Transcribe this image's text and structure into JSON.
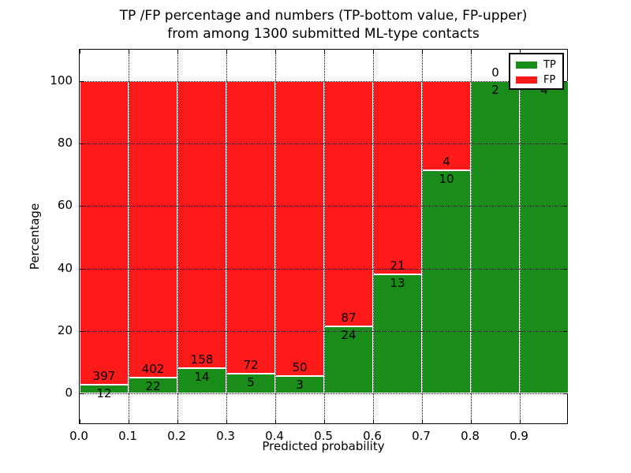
{
  "chart_data": {
    "type": "bar",
    "stacked": true,
    "title_line1": "TP /FP percentage and numbers (TP-bottom value, FP-upper)",
    "title_line2": "from among 1300 submitted ML-type contacts",
    "xlabel": "Predicted probability",
    "ylabel": "Percentage",
    "total_contacts": 1300,
    "categories": [
      "0.0-0.1",
      "0.1-0.2",
      "0.2-0.3",
      "0.3-0.4",
      "0.4-0.5",
      "0.5-0.6",
      "0.6-0.7",
      "0.7-0.8",
      "0.8-0.9",
      "0.9-1.0"
    ],
    "bin_width": 0.1,
    "xlim": [
      0.0,
      1.0
    ],
    "ylim": [
      -10,
      110
    ],
    "x_tick_values": [
      0.0,
      0.1,
      0.2,
      0.3,
      0.4,
      0.5,
      0.6,
      0.7,
      0.8,
      0.9
    ],
    "x_tick_labels": [
      "0.0",
      "0.1",
      "0.2",
      "0.3",
      "0.4",
      "0.5",
      "0.6",
      "0.7",
      "0.8",
      "0.9"
    ],
    "y_tick_values": [
      0,
      20,
      40,
      60,
      80,
      100
    ],
    "y_tick_labels": [
      "0",
      "20",
      "40",
      "60",
      "80",
      "100"
    ],
    "grid": "dotted, drawn above bars",
    "series": [
      {
        "name": "TP",
        "color": "#1A8C1A",
        "counts": [
          12,
          22,
          14,
          5,
          3,
          24,
          13,
          10,
          2,
          4
        ],
        "percents": [
          2.93,
          5.19,
          8.14,
          6.49,
          5.66,
          21.62,
          38.24,
          71.43,
          100,
          100
        ]
      },
      {
        "name": "FP",
        "color": "#FF1A1A",
        "counts": [
          397,
          402,
          158,
          72,
          50,
          87,
          21,
          4,
          0,
          0
        ],
        "percents": [
          97.07,
          94.81,
          91.86,
          93.51,
          94.34,
          78.38,
          61.76,
          28.57,
          0,
          0
        ]
      }
    ],
    "legend": {
      "position": "upper right",
      "entries": [
        {
          "label": "TP",
          "color": "#1A8C1A"
        },
        {
          "label": "FP",
          "color": "#FF1A1A"
        }
      ]
    }
  }
}
